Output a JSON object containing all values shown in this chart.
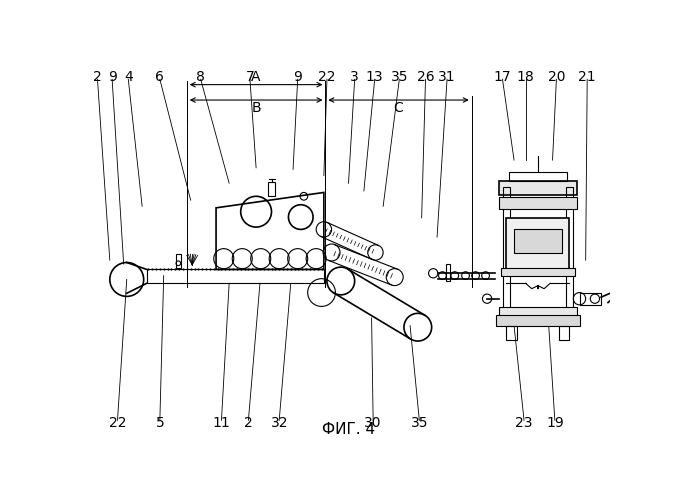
{
  "fig_label": "ФИГ. 4",
  "bg_color": "#ffffff",
  "line_color": "#000000",
  "dim_A_label": "A",
  "dim_B_label": "B",
  "dim_C_label": "C",
  "font_size": 10,
  "title_font_size": 11
}
